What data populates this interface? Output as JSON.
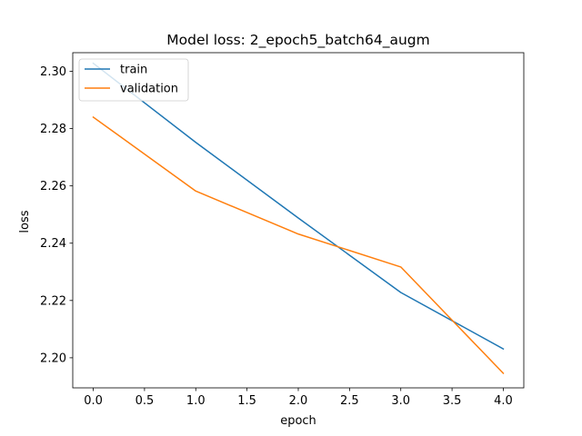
{
  "chart_data": {
    "type": "line",
    "title": "Model loss: 2_epoch5_batch64_augm",
    "xlabel": "epoch",
    "ylabel": "loss",
    "x": [
      0,
      1,
      2,
      3,
      4
    ],
    "series": [
      {
        "name": "train",
        "values": [
          2.3028,
          2.2752,
          2.2488,
          2.2228,
          2.2031
        ],
        "color": "#1f77b4"
      },
      {
        "name": "validation",
        "values": [
          2.284,
          2.2582,
          2.2432,
          2.2317,
          2.1946
        ],
        "color": "#ff7f0e"
      }
    ],
    "xlim": [
      -0.2,
      4.2
    ],
    "ylim": [
      2.1895,
      2.3065
    ],
    "xticks": [
      0.0,
      0.5,
      1.0,
      1.5,
      2.0,
      2.5,
      3.0,
      3.5,
      4.0
    ],
    "xtick_labels": [
      "0.0",
      "0.5",
      "1.0",
      "1.5",
      "2.0",
      "2.5",
      "3.0",
      "3.5",
      "4.0"
    ],
    "yticks": [
      2.2,
      2.22,
      2.24,
      2.26,
      2.28,
      2.3
    ],
    "ytick_labels": [
      "2.20",
      "2.22",
      "2.24",
      "2.26",
      "2.28",
      "2.30"
    ],
    "grid": false,
    "legend_position": "upper-left"
  }
}
